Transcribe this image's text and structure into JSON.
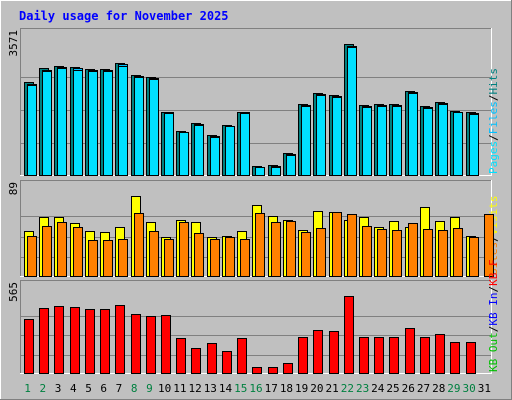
{
  "colors": {
    "frame": "#c0c0c0",
    "plot_bg": "#c0c0c0",
    "title": "#0000ff",
    "grid": "#808080",
    "hits": "#008080",
    "files": "#00c0ff",
    "pages": "#00e0ff",
    "visits": "#ffff00",
    "sites": "#ff8000",
    "kbytes": "#ff0000",
    "weekday_label": "#000000",
    "weekend_label": "#008040"
  },
  "chart_data": {
    "type": "bar",
    "title": "Daily usage for November 2025",
    "categories": [
      "1",
      "2",
      "3",
      "4",
      "5",
      "6",
      "7",
      "8",
      "9",
      "10",
      "11",
      "12",
      "13",
      "14",
      "15",
      "16",
      "17",
      "18",
      "19",
      "20",
      "21",
      "22",
      "23",
      "24",
      "25",
      "26",
      "27",
      "28",
      "29",
      "30",
      "31"
    ],
    "weekend_days": [
      "1",
      "2",
      "8",
      "9",
      "15",
      "16",
      "22",
      "23",
      "29",
      "30"
    ],
    "panels": [
      {
        "id": "top",
        "max_label": "3571",
        "ylim": [
          0,
          3571
        ],
        "legend": [
          {
            "label": "Hits",
            "color": "#008080"
          },
          {
            "label": "/",
            "color": "#000000"
          },
          {
            "label": "Files",
            "color": "#00c0ff"
          },
          {
            "label": "/",
            "color": "#000000"
          },
          {
            "label": "Pages",
            "color": "#00e0ff"
          }
        ],
        "series": [
          {
            "name": "Hits",
            "values": [
              2530,
              2910,
              2980,
              2940,
              2900,
              2900,
              3070,
              2720,
              2680,
              1740,
              1230,
              1440,
              1100,
              1380,
              1740,
              280,
              290,
              610,
              1950,
              2240,
              2200,
              3571,
              1930,
              1950,
              1950,
              2300,
              1890,
              2010,
              1760,
              1730,
              0
            ]
          },
          {
            "name": "Files",
            "values": [
              2500,
              2870,
              2950,
              2910,
              2870,
              2870,
              3020,
              2700,
              2650,
              1720,
              1200,
              1410,
              1080,
              1360,
              1720,
              250,
              260,
              590,
              1920,
              2210,
              2170,
              3520,
              1900,
              1920,
              1920,
              2270,
              1860,
              1980,
              1740,
              1700,
              0
            ]
          },
          {
            "name": "Pages",
            "values": [
              2450,
              2840,
              2920,
              2880,
              2840,
              2840,
              2980,
              2670,
              2620,
              1700,
              1180,
              1390,
              1060,
              1340,
              1700,
              240,
              240,
              570,
              1900,
              2180,
              2140,
              3480,
              1880,
              1900,
              1900,
              2240,
              1840,
              1960,
              1720,
              1680,
              0
            ]
          }
        ]
      },
      {
        "id": "middle",
        "max_label": "89",
        "ylim": [
          0,
          89
        ],
        "legend": [
          {
            "label": "Visits",
            "color": "#ffff00"
          },
          {
            "label": "/",
            "color": "#000000"
          },
          {
            "label": "Sites",
            "color": "#ff8000"
          }
        ],
        "series": [
          {
            "name": "Visits",
            "values": [
              51,
              66,
              66,
              59,
              50,
              49,
              55,
              89,
              60,
              44,
              63,
              60,
              44,
              45,
              50,
              79,
              67,
              63,
              52,
              73,
              71,
              63,
              66,
              55,
              62,
              55,
              77,
              61,
              66,
              45,
              0
            ]
          },
          {
            "name": "Sites",
            "values": [
              45,
              56,
              60,
              55,
              41,
              41,
              42,
              70,
              50,
              42,
              60,
              48,
              42,
              44,
              42,
              70,
              60,
              62,
              49,
              54,
              71,
              69,
              56,
              53,
              52,
              59,
              53,
              52,
              54,
              44,
              69
            ]
          }
        ]
      },
      {
        "id": "bottom",
        "max_label": "565",
        "ylim": [
          0,
          565
        ],
        "legend": [
          {
            "label": "KB F",
            "color": "#ff0000"
          },
          {
            "label": "/",
            "color": "#000000"
          },
          {
            "label": "KB In",
            "color": "#0000ff"
          },
          {
            "label": "/",
            "color": "#000000"
          },
          {
            "label": "KB Out",
            "color": "#00c000"
          }
        ],
        "series": [
          {
            "name": "KB F",
            "values": [
              400,
              480,
              490,
              485,
              470,
              470,
              500,
              438,
              420,
              428,
              260,
              190,
              224,
              165,
              262,
              48,
              48,
              80,
              270,
              318,
              310,
              565,
              268,
              270,
              270,
              335,
              268,
              290,
              230,
              230,
              0
            ]
          }
        ]
      }
    ]
  }
}
